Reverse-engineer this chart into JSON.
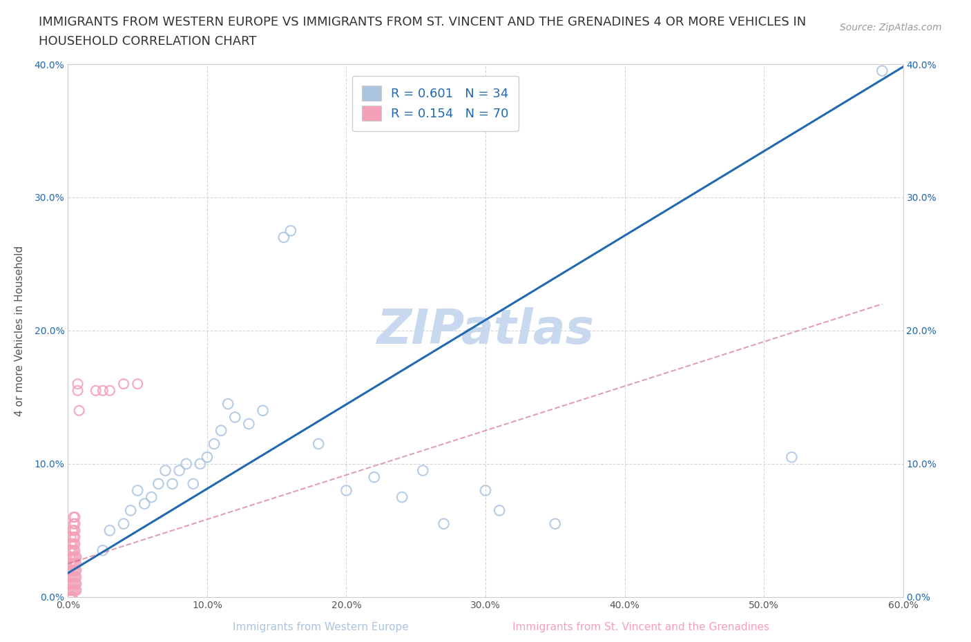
{
  "title_line1": "IMMIGRANTS FROM WESTERN EUROPE VS IMMIGRANTS FROM ST. VINCENT AND THE GRENADINES 4 OR MORE VEHICLES IN",
  "title_line2": "HOUSEHOLD CORRELATION CHART",
  "source_text": "Source: ZipAtlas.com",
  "xlabel_blue": "Immigrants from Western Europe",
  "xlabel_pink": "Immigrants from St. Vincent and the Grenadines",
  "ylabel": "4 or more Vehicles in Household",
  "watermark": "ZIPatlas",
  "xlim": [
    0.0,
    0.6
  ],
  "ylim": [
    0.0,
    0.4
  ],
  "xtick_values": [
    0.0,
    0.1,
    0.2,
    0.3,
    0.4,
    0.5,
    0.6
  ],
  "ytick_values": [
    0.0,
    0.1,
    0.2,
    0.3,
    0.4
  ],
  "blue_R": 0.601,
  "blue_N": 34,
  "pink_R": 0.154,
  "pink_N": 70,
  "blue_color": "#aac4e0",
  "pink_color": "#f4a0b8",
  "blue_line_color": "#2068b0",
  "pink_line_color": "#d06080",
  "blue_scatter": [
    [
      0.025,
      0.035
    ],
    [
      0.03,
      0.05
    ],
    [
      0.04,
      0.055
    ],
    [
      0.045,
      0.065
    ],
    [
      0.05,
      0.08
    ],
    [
      0.055,
      0.07
    ],
    [
      0.06,
      0.075
    ],
    [
      0.065,
      0.085
    ],
    [
      0.07,
      0.095
    ],
    [
      0.075,
      0.085
    ],
    [
      0.08,
      0.095
    ],
    [
      0.085,
      0.1
    ],
    [
      0.09,
      0.085
    ],
    [
      0.095,
      0.1
    ],
    [
      0.1,
      0.105
    ],
    [
      0.105,
      0.115
    ],
    [
      0.11,
      0.125
    ],
    [
      0.115,
      0.145
    ],
    [
      0.12,
      0.135
    ],
    [
      0.13,
      0.13
    ],
    [
      0.14,
      0.14
    ],
    [
      0.155,
      0.27
    ],
    [
      0.16,
      0.275
    ],
    [
      0.18,
      0.115
    ],
    [
      0.2,
      0.08
    ],
    [
      0.22,
      0.09
    ],
    [
      0.24,
      0.075
    ],
    [
      0.255,
      0.095
    ],
    [
      0.27,
      0.055
    ],
    [
      0.3,
      0.08
    ],
    [
      0.31,
      0.065
    ],
    [
      0.35,
      0.055
    ],
    [
      0.52,
      0.105
    ],
    [
      0.585,
      0.395
    ]
  ],
  "pink_scatter": [
    [
      0.0,
      0.005
    ],
    [
      0.0,
      0.01
    ],
    [
      0.0,
      0.015
    ],
    [
      0.0,
      0.02
    ],
    [
      0.001,
      0.0
    ],
    [
      0.001,
      0.005
    ],
    [
      0.001,
      0.01
    ],
    [
      0.001,
      0.015
    ],
    [
      0.001,
      0.02
    ],
    [
      0.001,
      0.025
    ],
    [
      0.001,
      0.03
    ],
    [
      0.001,
      0.035
    ],
    [
      0.002,
      0.0
    ],
    [
      0.002,
      0.005
    ],
    [
      0.002,
      0.01
    ],
    [
      0.002,
      0.015
    ],
    [
      0.002,
      0.02
    ],
    [
      0.002,
      0.025
    ],
    [
      0.002,
      0.03
    ],
    [
      0.002,
      0.035
    ],
    [
      0.002,
      0.04
    ],
    [
      0.002,
      0.045
    ],
    [
      0.003,
      0.0
    ],
    [
      0.003,
      0.005
    ],
    [
      0.003,
      0.01
    ],
    [
      0.003,
      0.015
    ],
    [
      0.003,
      0.02
    ],
    [
      0.003,
      0.025
    ],
    [
      0.003,
      0.03
    ],
    [
      0.003,
      0.035
    ],
    [
      0.003,
      0.04
    ],
    [
      0.003,
      0.05
    ],
    [
      0.004,
      0.005
    ],
    [
      0.004,
      0.01
    ],
    [
      0.004,
      0.015
    ],
    [
      0.004,
      0.02
    ],
    [
      0.004,
      0.025
    ],
    [
      0.004,
      0.03
    ],
    [
      0.004,
      0.035
    ],
    [
      0.004,
      0.04
    ],
    [
      0.004,
      0.045
    ],
    [
      0.004,
      0.05
    ],
    [
      0.004,
      0.055
    ],
    [
      0.004,
      0.06
    ],
    [
      0.005,
      0.005
    ],
    [
      0.005,
      0.01
    ],
    [
      0.005,
      0.015
    ],
    [
      0.005,
      0.02
    ],
    [
      0.005,
      0.025
    ],
    [
      0.005,
      0.03
    ],
    [
      0.005,
      0.035
    ],
    [
      0.005,
      0.04
    ],
    [
      0.005,
      0.045
    ],
    [
      0.005,
      0.05
    ],
    [
      0.005,
      0.055
    ],
    [
      0.005,
      0.06
    ],
    [
      0.006,
      0.005
    ],
    [
      0.006,
      0.01
    ],
    [
      0.006,
      0.015
    ],
    [
      0.006,
      0.02
    ],
    [
      0.006,
      0.025
    ],
    [
      0.006,
      0.03
    ],
    [
      0.007,
      0.155
    ],
    [
      0.007,
      0.16
    ],
    [
      0.008,
      0.14
    ],
    [
      0.02,
      0.155
    ],
    [
      0.025,
      0.155
    ],
    [
      0.03,
      0.155
    ],
    [
      0.04,
      0.16
    ],
    [
      0.05,
      0.16
    ]
  ],
  "grid_color": "#cccccc",
  "background_color": "#ffffff",
  "title_fontsize": 13,
  "axis_label_fontsize": 11,
  "tick_fontsize": 10,
  "legend_fontsize": 13,
  "watermark_fontsize": 50,
  "watermark_color": "#c8d8ee",
  "source_fontsize": 10
}
